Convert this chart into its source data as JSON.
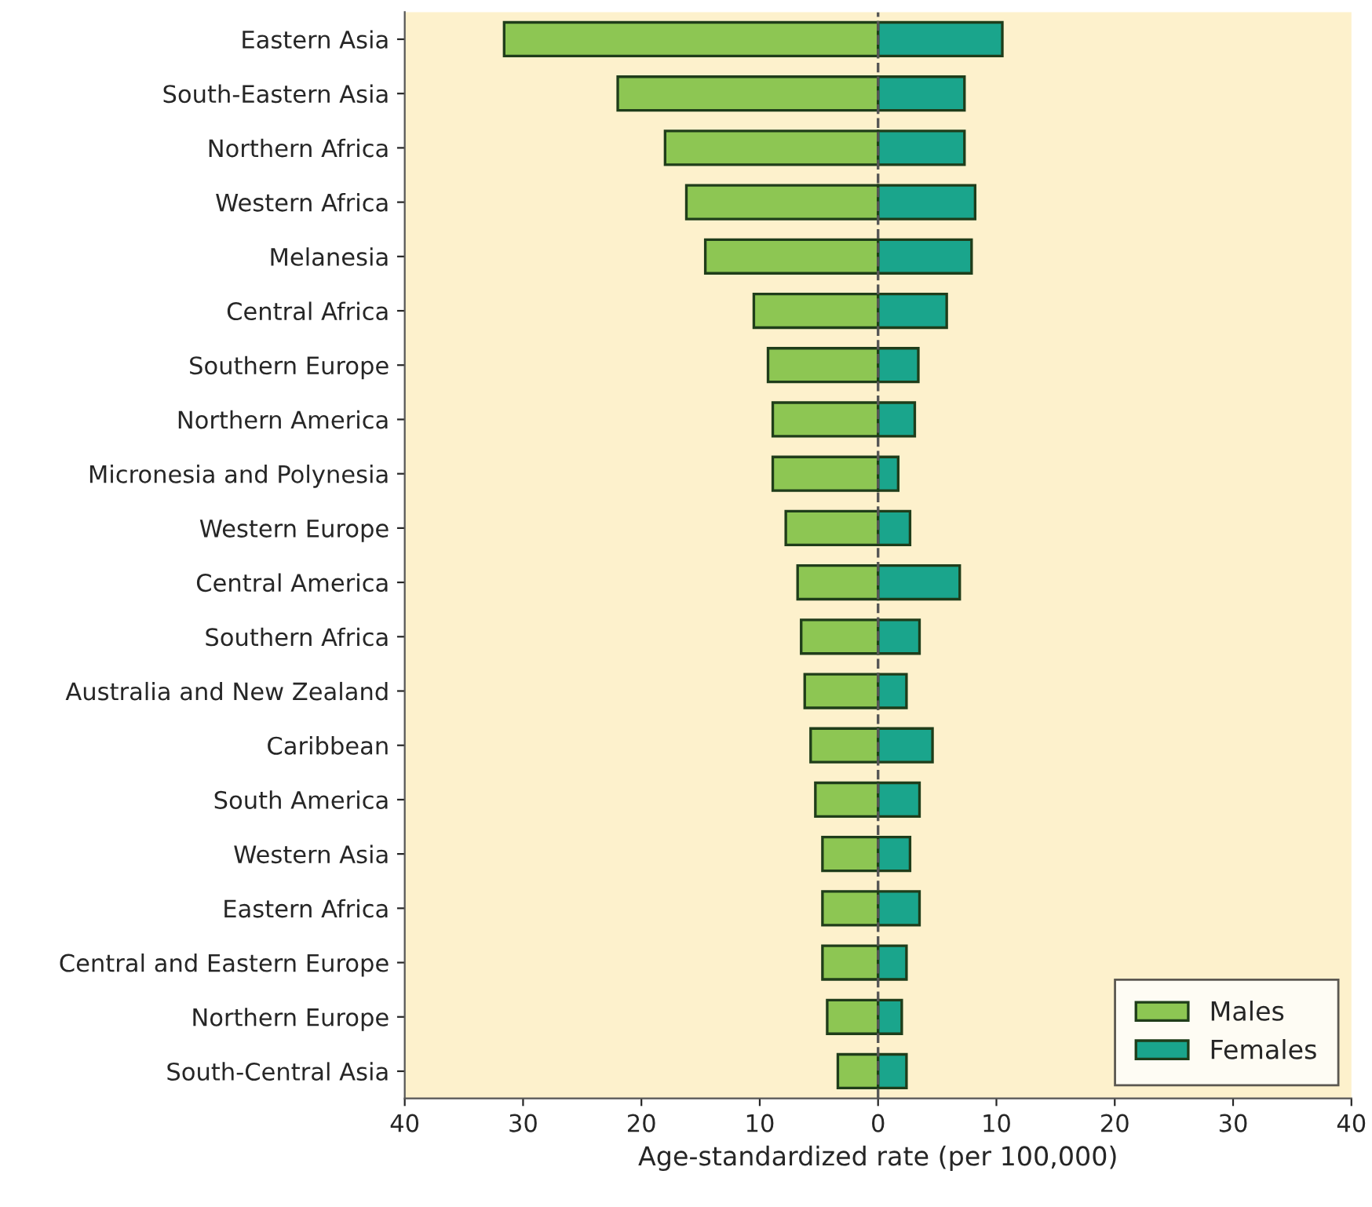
{
  "chart_data": {
    "type": "bar",
    "orientation": "horizontal",
    "xlabel": "Age-standardized rate (per 100,000)",
    "categories": [
      "Eastern Asia",
      "South-Eastern Asia",
      "Northern Africa",
      "Western Africa",
      "Melanesia",
      "Central Africa",
      "Southern Europe",
      "Northern America",
      "Micronesia and Polynesia",
      "Western Europe",
      "Central America",
      "Southern Africa",
      "Australia and New Zealand",
      "Caribbean",
      "South America",
      "Western Asia",
      "Eastern Africa",
      "Central and Eastern Europe",
      "Northern Europe",
      "South-Central Asia"
    ],
    "series": [
      {
        "name": "Males",
        "color": "#8dc653",
        "values": [
          -31.6,
          -22.0,
          -18.0,
          -16.2,
          -14.6,
          -10.5,
          -9.3,
          -8.9,
          -8.9,
          -7.8,
          -6.8,
          -6.5,
          -6.2,
          -5.7,
          -5.3,
          -4.7,
          -4.7,
          -4.7,
          -4.3,
          -3.4
        ]
      },
      {
        "name": "Females",
        "color": "#1aa58c",
        "values": [
          10.5,
          7.3,
          7.3,
          8.2,
          7.9,
          5.8,
          3.4,
          3.1,
          1.7,
          2.7,
          6.9,
          3.5,
          2.4,
          4.6,
          3.5,
          2.7,
          3.5,
          2.4,
          2.0,
          2.4
        ]
      }
    ],
    "xlim": [
      -40,
      40
    ],
    "xticks": [
      {
        "value": -40,
        "label": "40"
      },
      {
        "value": -30,
        "label": "30"
      },
      {
        "value": -20,
        "label": "20"
      },
      {
        "value": -10,
        "label": "10"
      },
      0,
      10,
      20,
      30,
      40
    ],
    "ref_lines": [
      {
        "axis": "x",
        "value": 0,
        "label": null,
        "color": "#555555",
        "line_style": "dashed"
      }
    ],
    "stacked": true,
    "grid": false,
    "legend": "bottom right"
  }
}
